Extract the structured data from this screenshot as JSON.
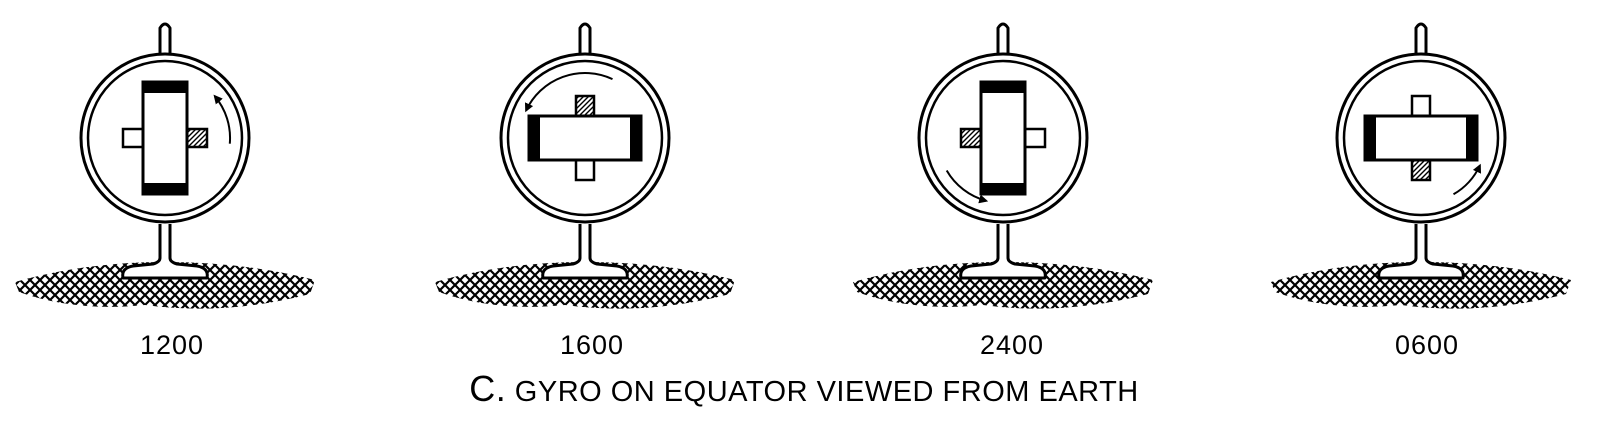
{
  "panels": [
    {
      "time_label": "1200",
      "rotor": "vertical",
      "hatched_block": "right",
      "arrow": "upper-right"
    },
    {
      "time_label": "1600",
      "rotor": "horizontal",
      "hatched_block": "top",
      "arrow": "upper-left"
    },
    {
      "time_label": "2400",
      "rotor": "vertical",
      "hatched_block": "left",
      "arrow": "lower-left"
    },
    {
      "time_label": "0600",
      "rotor": "horizontal",
      "hatched_block": "bottom",
      "arrow": "lower-right"
    }
  ],
  "caption": {
    "letter": "C.",
    "text": "GYRO ON EQUATOR VIEWED FROM EARTH"
  },
  "colors": {
    "ink": "#000000",
    "background": "#ffffff"
  }
}
